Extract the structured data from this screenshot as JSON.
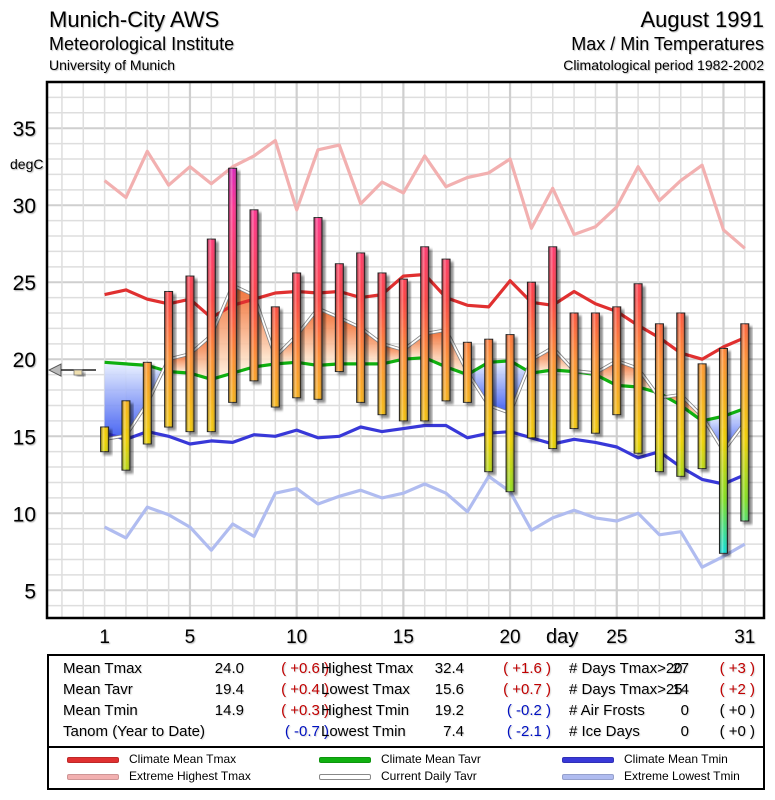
{
  "header": {
    "station": "Munich-City AWS",
    "institute": "Meteorological Institute",
    "university": "University of Munich",
    "month": "August 1991",
    "subtitle": "Max / Min Temperatures",
    "period": "Climatological period 1982-2002"
  },
  "colors": {
    "climate_mean_tmax": "#e03030",
    "extreme_highest_tmax": "#f2b0b0",
    "climate_mean_tavr": "#10b010",
    "current_daily_tavr": "#ffffff",
    "climate_mean_tmin": "#3838d8",
    "extreme_lowest_tmin": "#b0bcf0",
    "grid": "#d8d8d8"
  },
  "chart_data": {
    "type": "bar",
    "title": "Max / Min Temperatures",
    "xlabel": "day",
    "ylabel": "degC",
    "xlim": [
      -1.7,
      31.9
    ],
    "ylim": [
      3.2,
      38.0
    ],
    "grid": true,
    "x_ticks": [
      1,
      5,
      10,
      15,
      20,
      25,
      31
    ],
    "y_ticks": [
      5,
      10,
      15,
      20,
      25,
      30,
      35
    ],
    "days": [
      1,
      2,
      3,
      4,
      5,
      6,
      7,
      8,
      9,
      10,
      11,
      12,
      13,
      14,
      15,
      16,
      17,
      18,
      19,
      20,
      21,
      22,
      23,
      24,
      25,
      26,
      27,
      28,
      29,
      30,
      31
    ],
    "daily_range_bars": {
      "name": "Daily Tmax / Tmin",
      "tmax": [
        15.6,
        17.3,
        19.8,
        24.4,
        25.4,
        27.8,
        32.4,
        29.7,
        23.4,
        25.6,
        29.2,
        26.2,
        26.9,
        25.6,
        25.2,
        27.3,
        26.5,
        21.1,
        21.3,
        21.6,
        25.0,
        27.3,
        23.0,
        23.0,
        23.4,
        24.9,
        22.3,
        23.0,
        19.7,
        20.7,
        22.3
      ],
      "tmin": [
        14.0,
        12.8,
        14.5,
        15.6,
        15.3,
        15.3,
        17.2,
        18.6,
        16.9,
        17.5,
        17.4,
        19.2,
        17.2,
        16.4,
        16.0,
        16.0,
        17.3,
        17.2,
        12.7,
        11.4,
        14.9,
        14.2,
        15.5,
        15.2,
        16.4,
        13.9,
        12.7,
        12.4,
        12.9,
        7.4,
        9.5
      ]
    },
    "series": [
      {
        "name": "Climate Mean Tmax",
        "values": [
          24.2,
          24.5,
          23.9,
          23.6,
          23.9,
          22.7,
          23.5,
          23.9,
          24.3,
          24.4,
          24.3,
          24.4,
          24.0,
          24.2,
          25.4,
          25.5,
          24.0,
          23.5,
          23.4,
          25.1,
          23.7,
          23.5,
          24.4,
          23.6,
          23.1,
          22.2,
          21.4,
          20.4,
          20.0,
          20.8,
          21.4
        ]
      },
      {
        "name": "Extreme Highest Tmax",
        "values": [
          31.6,
          30.5,
          33.5,
          31.3,
          32.5,
          31.4,
          32.5,
          33.2,
          34.2,
          29.7,
          33.6,
          33.9,
          30.1,
          31.5,
          30.8,
          33.2,
          31.2,
          31.8,
          32.1,
          33.0,
          28.5,
          31.1,
          28.1,
          28.6,
          29.9,
          32.5,
          30.3,
          31.6,
          32.6,
          28.4,
          27.2
        ]
      },
      {
        "name": "Climate Mean Tavr",
        "values": [
          19.8,
          19.7,
          19.6,
          19.2,
          19.1,
          18.7,
          19.1,
          19.5,
          19.7,
          19.8,
          19.6,
          19.7,
          19.7,
          19.7,
          20.0,
          20.1,
          19.5,
          19.0,
          19.8,
          19.9,
          19.1,
          19.3,
          19.2,
          19.0,
          18.3,
          18.2,
          17.8,
          17.0,
          16.0,
          16.3,
          16.8
        ]
      },
      {
        "name": "Climate Mean Tmin",
        "values": [
          15.2,
          14.8,
          15.3,
          15.0,
          14.5,
          14.7,
          14.6,
          15.1,
          15.0,
          15.4,
          14.9,
          15.0,
          15.6,
          15.3,
          15.5,
          15.7,
          15.7,
          14.9,
          15.2,
          15.3,
          14.9,
          14.5,
          14.8,
          14.6,
          14.3,
          13.6,
          14.0,
          13.0,
          12.2,
          11.9,
          12.5
        ]
      },
      {
        "name": "Extreme Lowest Tmin",
        "values": [
          9.1,
          8.4,
          10.4,
          9.9,
          9.1,
          7.6,
          9.3,
          8.5,
          11.3,
          11.6,
          10.6,
          11.1,
          11.5,
          11.0,
          11.3,
          11.9,
          11.3,
          10.1,
          12.4,
          11.4,
          8.9,
          9.7,
          10.2,
          9.7,
          9.5,
          10.0,
          8.6,
          8.8,
          6.5,
          7.2,
          8.0
        ]
      }
    ],
    "annotations": {
      "tanom_marker_value": 19.3
    }
  },
  "stats": {
    "col1": [
      {
        "label": "Mean Tmax",
        "value": "24.0",
        "anomaly": "( +0.6 )",
        "sign": "pos"
      },
      {
        "label": "Mean Tavr",
        "value": "19.4",
        "anomaly": "( +0.4 )",
        "sign": "pos"
      },
      {
        "label": "Mean Tmin",
        "value": "14.9",
        "anomaly": "( +0.3 )",
        "sign": "pos"
      },
      {
        "label": "Tanom (Year to Date)",
        "value": "",
        "anomaly": "( -0.7 )",
        "sign": "neg"
      }
    ],
    "col2": [
      {
        "label": "Highest Tmax",
        "value": "32.4",
        "anomaly": "( +1.6 )",
        "sign": "pos"
      },
      {
        "label": "Lowest Tmax",
        "value": "15.6",
        "anomaly": "( +0.7 )",
        "sign": "pos"
      },
      {
        "label": "Highest Tmin",
        "value": "19.2",
        "anomaly": "( -0.2 )",
        "sign": "neg"
      },
      {
        "label": "Lowest Tmin",
        "value": "7.4",
        "anomaly": "( -2.1 )",
        "sign": "neg"
      }
    ],
    "col3": [
      {
        "label": "# Days Tmax>20",
        "value": "27",
        "anomaly": "( +3 )",
        "sign": "pos"
      },
      {
        "label": "# Days Tmax>25",
        "value": "14",
        "anomaly": "( +2 )",
        "sign": "pos"
      },
      {
        "label": "# Air Frosts",
        "value": "0",
        "anomaly": "( +0 )",
        "sign": "neu"
      },
      {
        "label": "# Ice Days",
        "value": "0",
        "anomaly": "( +0 )",
        "sign": "neu"
      }
    ]
  },
  "legend": [
    {
      "label": "Climate Mean Tmax",
      "color": "#e03030"
    },
    {
      "label": "Extreme Highest Tmax",
      "color": "#f2b0b0"
    },
    {
      "label": "Climate Mean Tavr",
      "color": "#10b010"
    },
    {
      "label": "Current Daily Tavr",
      "color": "#ffffff"
    },
    {
      "label": "Climate Mean Tmin",
      "color": "#3838d8"
    },
    {
      "label": "Extreme Lowest Tmin",
      "color": "#b0bcf0"
    }
  ]
}
